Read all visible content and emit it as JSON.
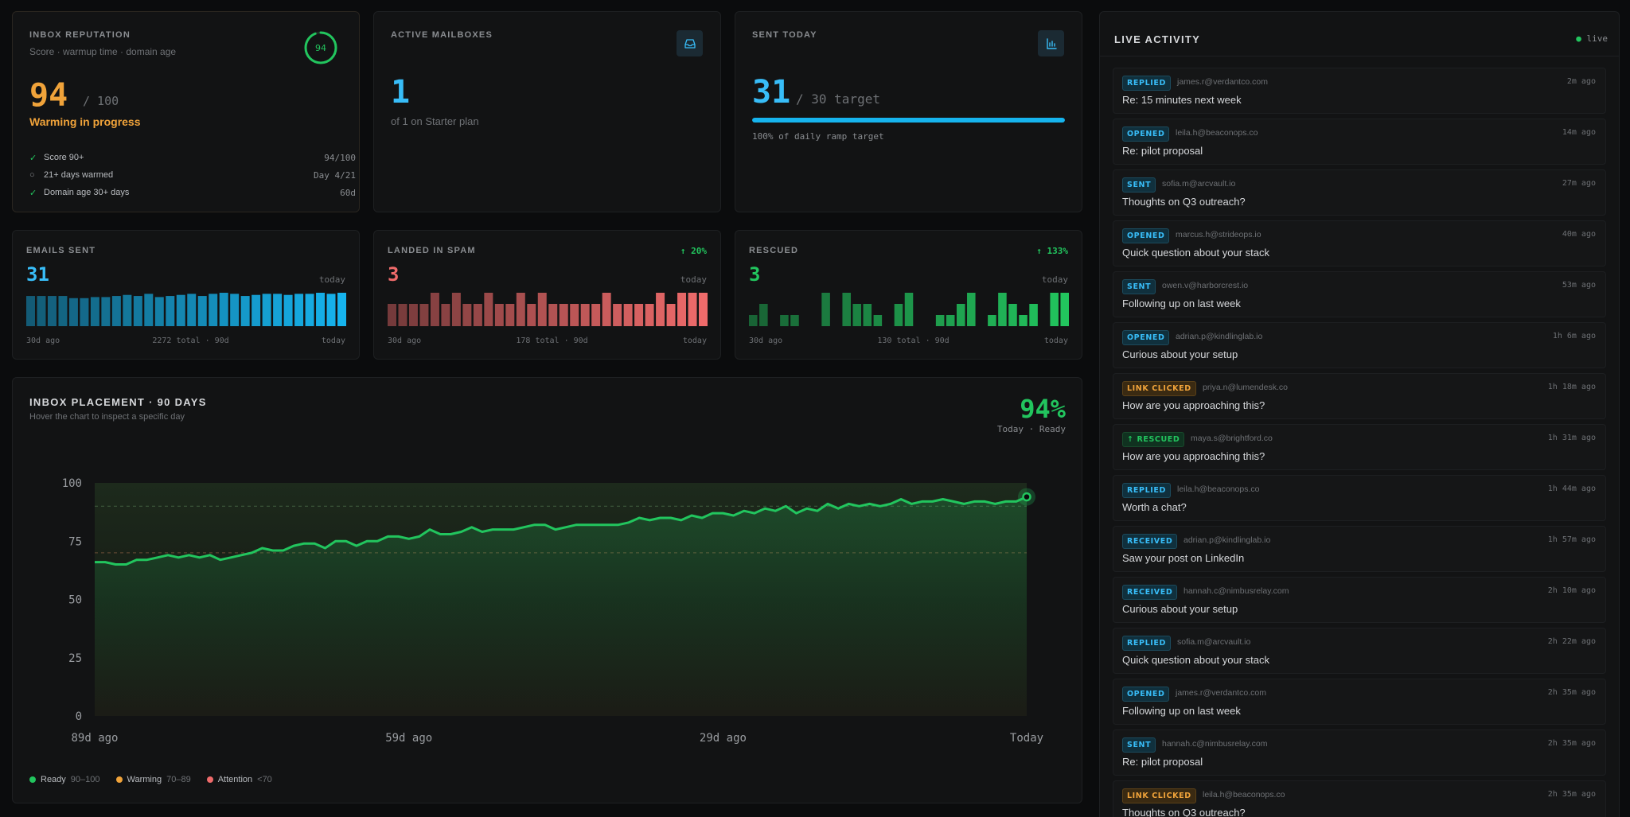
{
  "reputation": {
    "title": "INBOX REPUTATION",
    "subtitle": "Score · warmup time · domain age",
    "score": "94",
    "out_of": "/ 100",
    "ring_value": "94",
    "ring_fraction": 0.94,
    "status": "Warming in progress",
    "checks": [
      {
        "label": "Score 90+",
        "value": "94/100",
        "done": true
      },
      {
        "label": "21+ days warmed",
        "value": "Day 4/21",
        "done": false
      },
      {
        "label": "Domain age 30+ days",
        "value": "60d",
        "done": true
      }
    ]
  },
  "mailboxes": {
    "title": "ACTIVE MAILBOXES",
    "count": "1",
    "sub": "of 1 on Starter plan",
    "icon": "inbox-icon"
  },
  "sent_today": {
    "title": "SENT TODAY",
    "count": "31",
    "target": "/ 30 target",
    "progress": 1.0,
    "note": "100% of daily ramp target",
    "icon": "bar-chart-icon"
  },
  "emails_sent": {
    "title": "EMAILS SENT",
    "value": "31",
    "today": "today",
    "start": "30d ago",
    "total": "2272 total · 90d",
    "end": "today",
    "color": "#16b4ee",
    "bars": [
      28,
      28,
      28,
      28,
      26,
      26,
      27,
      27,
      28,
      29,
      28,
      30,
      27,
      28,
      29,
      30,
      28,
      30,
      31,
      30,
      28,
      29,
      30,
      30,
      29,
      30,
      30,
      31,
      30,
      31
    ]
  },
  "spam": {
    "title": "LANDED IN SPAM",
    "delta": "↑ 20%",
    "value": "3",
    "today": "today",
    "start": "30d ago",
    "total": "178 total · 90d",
    "end": "today",
    "color": "#ef6b6b",
    "bars": [
      2,
      2,
      2,
      2,
      3,
      2,
      3,
      2,
      2,
      3,
      2,
      2,
      3,
      2,
      3,
      2,
      2,
      2,
      2,
      2,
      3,
      2,
      2,
      2,
      2,
      3,
      2,
      3,
      3,
      3
    ]
  },
  "rescued": {
    "title": "RESCUED",
    "delta": "↑ 133%",
    "value": "3",
    "today": "today",
    "start": "30d ago",
    "total": "130 total · 90d",
    "end": "today",
    "color": "#22c55e",
    "bars": [
      1,
      2,
      0,
      1,
      1,
      0,
      0,
      3,
      0,
      3,
      2,
      2,
      1,
      0,
      2,
      3,
      0,
      0,
      1,
      1,
      2,
      3,
      0,
      1,
      3,
      2,
      1,
      2,
      0,
      3,
      3
    ]
  },
  "placement": {
    "title": "INBOX PLACEMENT · 90 DAYS",
    "subtitle": "Hover the chart to inspect a specific day",
    "current": "94%",
    "current_sub": "Today · Ready",
    "legend": [
      {
        "label": "Ready",
        "range": "90–100",
        "color": "#22c55e"
      },
      {
        "label": "Warming",
        "range": "70–89",
        "color": "#f0a33a"
      },
      {
        "label": "Attention",
        "range": "<70",
        "color": "#ef6b6b"
      }
    ]
  },
  "chart_data": {
    "type": "area",
    "title": "INBOX PLACEMENT · 90 DAYS",
    "xlabel": "",
    "ylabel": "",
    "ylim": [
      0,
      100
    ],
    "yticks": [
      0,
      25,
      50,
      75,
      100
    ],
    "x_tick_labels": [
      "89d ago",
      "59d ago",
      "29d ago",
      "Today"
    ],
    "thresholds": [
      90,
      70
    ],
    "grid": false,
    "series": [
      {
        "values": [
          66,
          66,
          65,
          65,
          67,
          67,
          68,
          69,
          68,
          69,
          68,
          69,
          67,
          68,
          69,
          70,
          72,
          71,
          71,
          73,
          74,
          74,
          72,
          75,
          75,
          73,
          75,
          75,
          77,
          77,
          76,
          77,
          80,
          78,
          78,
          79,
          81,
          79,
          80,
          80,
          80,
          81,
          82,
          82,
          80,
          81,
          82,
          82,
          82,
          82,
          82,
          83,
          85,
          84,
          85,
          85,
          84,
          86,
          85,
          87,
          87,
          86,
          88,
          87,
          89,
          88,
          90,
          87,
          89,
          88,
          91,
          89,
          91,
          90,
          91,
          90,
          91,
          93,
          91,
          92,
          92,
          93,
          92,
          91,
          92,
          92,
          91,
          92,
          92,
          94
        ]
      }
    ]
  },
  "activity": {
    "title": "LIVE ACTIVITY",
    "live_label": "live",
    "items": [
      {
        "badge": "REPLIED",
        "kind": "replied",
        "email": "james.r@verdantco.com",
        "time": "2m ago",
        "subject": "Re: 15 minutes next week"
      },
      {
        "badge": "OPENED",
        "kind": "opened",
        "email": "leila.h@beaconops.co",
        "time": "14m ago",
        "subject": "Re: pilot proposal"
      },
      {
        "badge": "SENT",
        "kind": "sent",
        "email": "sofia.m@arcvault.io",
        "time": "27m ago",
        "subject": "Thoughts on Q3 outreach?"
      },
      {
        "badge": "OPENED",
        "kind": "opened",
        "email": "marcus.h@strideops.io",
        "time": "40m ago",
        "subject": "Quick question about your stack"
      },
      {
        "badge": "SENT",
        "kind": "sent",
        "email": "owen.v@harborcrest.io",
        "time": "53m ago",
        "subject": "Following up on last week"
      },
      {
        "badge": "OPENED",
        "kind": "opened",
        "email": "adrian.p@kindlinglab.io",
        "time": "1h 6m ago",
        "subject": "Curious about your setup"
      },
      {
        "badge": "LINK CLICKED",
        "kind": "link",
        "email": "priya.n@lumendesk.co",
        "time": "1h 18m ago",
        "subject": "How are you approaching this?"
      },
      {
        "badge": "↑ RESCUED",
        "kind": "rescued",
        "email": "maya.s@brightford.co",
        "time": "1h 31m ago",
        "subject": "How are you approaching this?"
      },
      {
        "badge": "REPLIED",
        "kind": "replied",
        "email": "leila.h@beaconops.co",
        "time": "1h 44m ago",
        "subject": "Worth a chat?"
      },
      {
        "badge": "RECEIVED",
        "kind": "received",
        "email": "adrian.p@kindlinglab.io",
        "time": "1h 57m ago",
        "subject": "Saw your post on LinkedIn"
      },
      {
        "badge": "RECEIVED",
        "kind": "received",
        "email": "hannah.c@nimbusrelay.com",
        "time": "2h 10m ago",
        "subject": "Curious about your setup"
      },
      {
        "badge": "REPLIED",
        "kind": "replied",
        "email": "sofia.m@arcvault.io",
        "time": "2h 22m ago",
        "subject": "Quick question about your stack"
      },
      {
        "badge": "OPENED",
        "kind": "opened",
        "email": "james.r@verdantco.com",
        "time": "2h 35m ago",
        "subject": "Following up on last week"
      },
      {
        "badge": "SENT",
        "kind": "sent",
        "email": "hannah.c@nimbusrelay.com",
        "time": "2h 35m ago",
        "subject": "Re: pilot proposal"
      },
      {
        "badge": "LINK CLICKED",
        "kind": "link",
        "email": "leila.h@beaconops.co",
        "time": "2h 35m ago",
        "subject": "Thoughts on Q3 outreach?"
      }
    ]
  }
}
